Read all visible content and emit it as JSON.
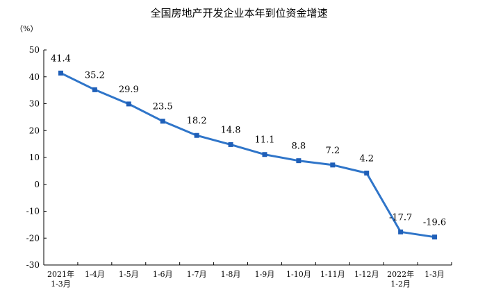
{
  "chart_data": {
    "type": "line",
    "title": "全国房地产开发企业本年到位资金增速",
    "unit_label": "（%）",
    "categories": [
      [
        "2021年",
        "1-3月"
      ],
      [
        "1-4月"
      ],
      [
        "1-5月"
      ],
      [
        "1-6月"
      ],
      [
        "1-7月"
      ],
      [
        "1-8月"
      ],
      [
        "1-9月"
      ],
      [
        "1-10月"
      ],
      [
        "1-11月"
      ],
      [
        "1-12月"
      ],
      [
        "2022年",
        "1-2月"
      ],
      [
        "1-3月"
      ]
    ],
    "values": [
      41.4,
      35.2,
      29.9,
      23.5,
      18.2,
      14.8,
      11.1,
      8.8,
      7.2,
      4.2,
      -17.7,
      -19.6
    ],
    "data_labels": [
      "41.4",
      "35.2",
      "29.9",
      "23.5",
      "18.2",
      "14.8",
      "11.1",
      "8.8",
      "7.2",
      "4.2",
      "-17.7",
      "-19.6"
    ],
    "ylim": [
      -30,
      50
    ],
    "yticks": [
      -30,
      -20,
      -10,
      0,
      10,
      20,
      30,
      40,
      50
    ],
    "grid": false,
    "line_color": "#2f75c9",
    "marker_color": "#1f5fb8"
  }
}
